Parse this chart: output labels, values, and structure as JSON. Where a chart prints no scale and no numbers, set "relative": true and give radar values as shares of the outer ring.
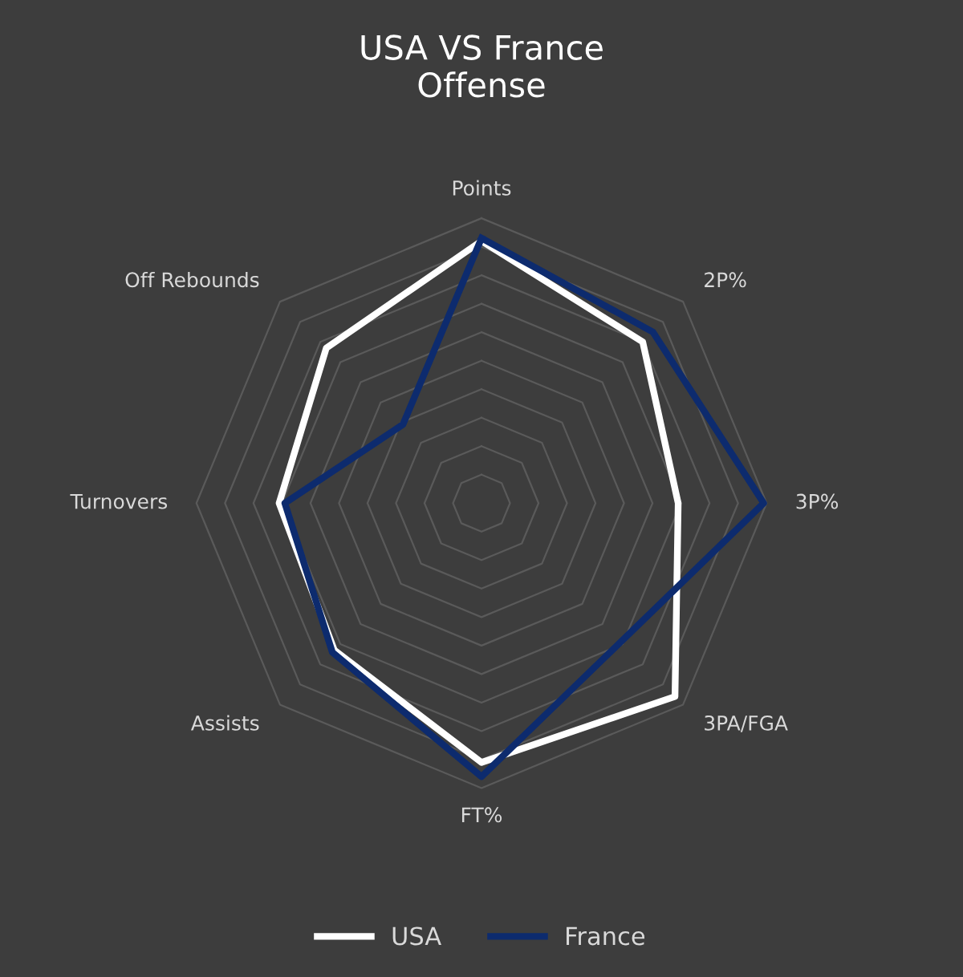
{
  "chart_data": {
    "type": "radar",
    "title": "USA VS France\nOffense",
    "relative": true,
    "grid": true,
    "legend": "bottom",
    "marker": "none",
    "line_style": "solid",
    "categories": [
      "Points",
      "2P%",
      "3P%",
      "3PA/FGA",
      "FT%",
      "Assists",
      "Turnovers",
      "Off Rebounds"
    ],
    "series": [
      {
        "name": "USA",
        "color": "#ffffff",
        "values": [
          0.92,
          0.8,
          0.69,
          0.96,
          0.91,
          0.73,
          0.71,
          0.77
        ]
      },
      {
        "name": "France",
        "color": "#0d2b6e",
        "values": [
          0.93,
          0.85,
          0.99,
          0.69,
          0.96,
          0.74,
          0.69,
          0.39
        ]
      }
    ]
  }
}
